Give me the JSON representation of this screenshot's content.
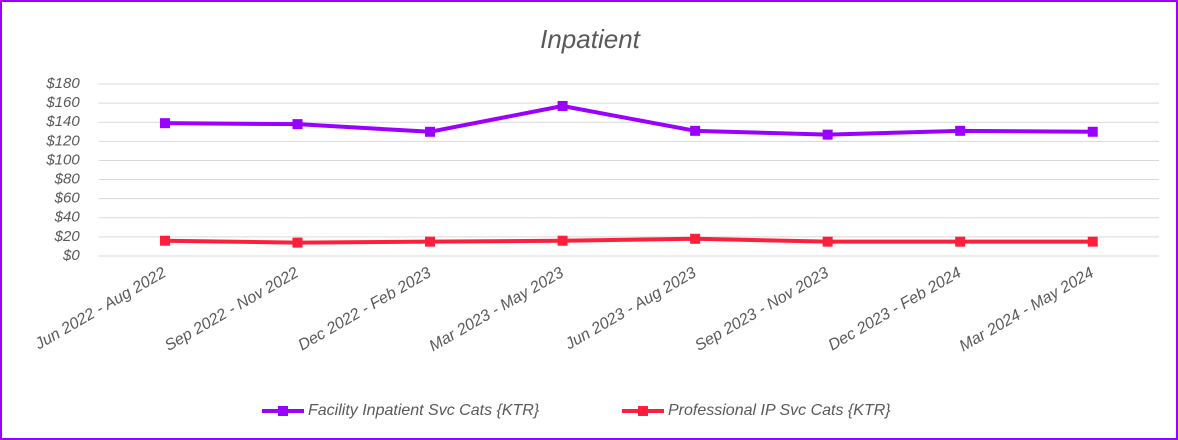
{
  "chart_data": {
    "type": "line",
    "title": "Inpatient",
    "categories": [
      "Jun 2022 - Aug 2022",
      "Sep 2022 - Nov 2022",
      "Dec 2022 - Feb 2023",
      "Mar 2023 - May 2023",
      "Jun 2023 - Aug 2023",
      "Sep 2023 - Nov 2023",
      "Dec 2023 - Feb 2024",
      "Mar 2024 - May 2024"
    ],
    "series": [
      {
        "name": "Facility Inpatient Svc Cats {KTR}",
        "color": "#9b00ff",
        "values": [
          139,
          138,
          130,
          157,
          131,
          127,
          131,
          130
        ]
      },
      {
        "name": "Professional IP Svc Cats {KTR}",
        "color": "#ff1f3d",
        "values": [
          16,
          14,
          15,
          16,
          18,
          15,
          15,
          15
        ]
      }
    ],
    "ylim": [
      0,
      180
    ],
    "yticks": [
      {
        "value": 0,
        "label": "$0"
      },
      {
        "value": 20,
        "label": "$20"
      },
      {
        "value": 40,
        "label": "$40"
      },
      {
        "value": 60,
        "label": "$60"
      },
      {
        "value": 80,
        "label": "$80"
      },
      {
        "value": 100,
        "label": "$100"
      },
      {
        "value": 120,
        "label": "$120"
      },
      {
        "value": 140,
        "label": "$140"
      },
      {
        "value": 160,
        "label": "$160"
      },
      {
        "value": 180,
        "label": "$180"
      }
    ],
    "grid": true,
    "legend": "bottom"
  }
}
